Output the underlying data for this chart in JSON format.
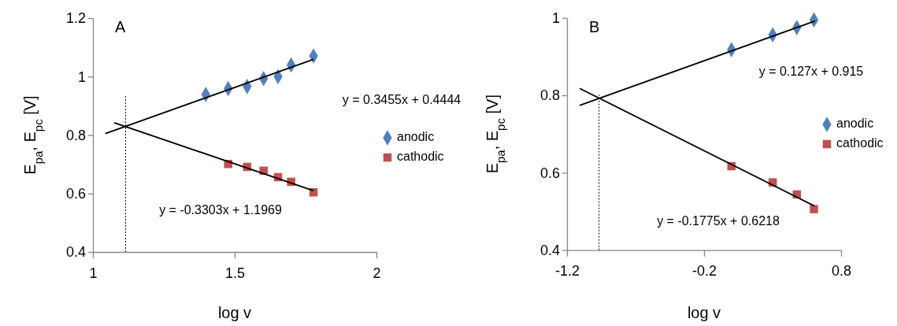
{
  "chart_data": [
    {
      "type": "scatter",
      "title": "A",
      "xlabel": "log v",
      "ylabel": "E$_{pa}$, E$_{pc}$ [V]",
      "xlim": [
        1,
        2
      ],
      "xticks": [
        1,
        1.5,
        2
      ],
      "ylim": [
        0.4,
        1.2
      ],
      "yticks": [
        0.4,
        0.6,
        0.8,
        1,
        1.2
      ],
      "grid": false,
      "legend": "right",
      "series": [
        {
          "name": "anodic",
          "color": "#4f81bd",
          "marker": "diamond",
          "x": [
            1.398,
            1.477,
            1.544,
            1.602,
            1.653,
            1.699,
            1.778
          ],
          "values": [
            0.939,
            0.959,
            0.966,
            0.993,
            1.0,
            1.04,
            1.071
          ]
        },
        {
          "name": "cathodic",
          "color": "#c0504d",
          "marker": "square",
          "x": [
            1.477,
            1.544,
            1.602,
            1.653,
            1.699,
            1.778
          ],
          "values": [
            0.701,
            0.691,
            0.678,
            0.656,
            0.64,
            0.604
          ]
        },
        {
          "type": "line",
          "color": "#000000",
          "marker": "none",
          "x": [
            1.044,
            1.778
          ],
          "values": [
            0.805,
            1.059
          ]
        },
        {
          "type": "line",
          "color": "#000000",
          "marker": "none",
          "x": [
            1.075,
            1.778
          ],
          "values": [
            0.842,
            0.61
          ]
        }
      ],
      "ref_lines": [
        {
          "axis": "x",
          "value": 1.115,
          "color": "#000000",
          "line_style": "dotted"
        }
      ],
      "annotations": [
        "y = 0.3455x + 0.4444",
        "y = -0.3303x + 1.1969"
      ]
    },
    {
      "type": "scatter",
      "title": "B",
      "xlabel": "log v",
      "ylabel": "E$_{pa}$, E$_{pc}$ [V]",
      "xlim": [
        -1.2,
        0.8
      ],
      "xticks": [
        -1.2,
        -0.2,
        0.8
      ],
      "ylim": [
        0.4,
        1
      ],
      "yticks": [
        0.4,
        0.6,
        0.8,
        1
      ],
      "grid": false,
      "legend": "right",
      "series": [
        {
          "name": "anodic",
          "color": "#4f81bd",
          "marker": "diamond",
          "x": [
            0,
            0.301,
            0.477,
            0.602
          ],
          "values": [
            0.918,
            0.956,
            0.975,
            0.995
          ]
        },
        {
          "name": "cathodic",
          "color": "#c0504d",
          "marker": "square",
          "x": [
            0,
            0.301,
            0.477,
            0.602
          ],
          "values": [
            0.617,
            0.575,
            0.544,
            0.506
          ]
        },
        {
          "type": "line",
          "color": "#000000",
          "marker": "none",
          "x": [
            -1.108,
            0.61
          ],
          "values": [
            0.774,
            0.992
          ]
        },
        {
          "type": "line",
          "color": "#000000",
          "marker": "none",
          "x": [
            -1.108,
            0.606
          ],
          "values": [
            0.818,
            0.514
          ]
        }
      ],
      "ref_lines": [
        {
          "axis": "x",
          "value": -0.966,
          "color": "#000000",
          "line_style": "dotted"
        }
      ],
      "annotations": [
        "y = 0.127x + 0.915",
        "y = -0.1775x + 0.6218"
      ]
    }
  ]
}
